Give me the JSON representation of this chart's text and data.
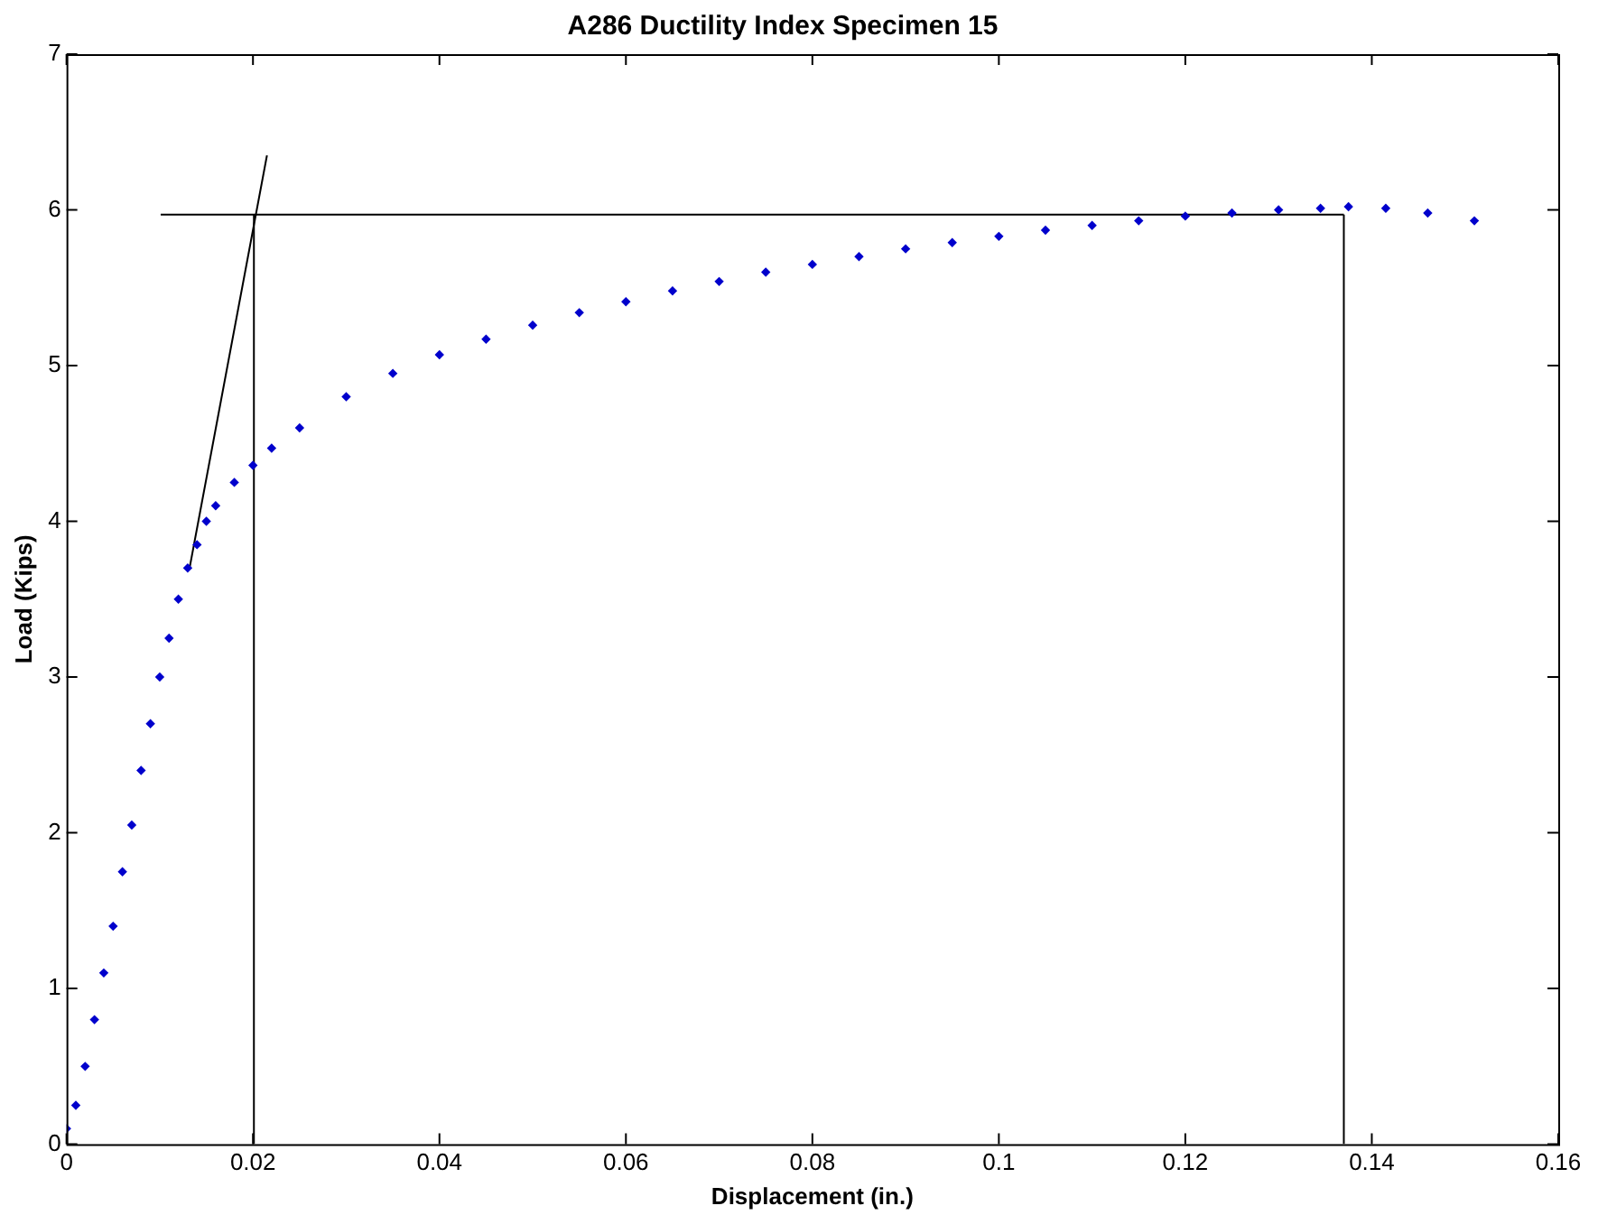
{
  "chart_data": {
    "type": "scatter",
    "title": "A286 Ductility Index Specimen 15",
    "xlabel": "Displacement (in.)",
    "ylabel": "Load (Kips)",
    "xlim": [
      0,
      0.16
    ],
    "xticks": [
      0,
      0.02,
      0.04,
      0.06,
      0.08,
      0.1,
      0.12,
      0.14,
      0.16
    ],
    "ylim": [
      0,
      7
    ],
    "yticks": [
      0,
      1,
      2,
      3,
      4,
      5,
      6,
      7
    ],
    "grid": false,
    "legend": false,
    "series": [
      {
        "marker": "diamond",
        "color": "#0000cc",
        "x": [
          0,
          0.001,
          0.002,
          0.003,
          0.004,
          0.005,
          0.006,
          0.007,
          0.008,
          0.009,
          0.01,
          0.011,
          0.012,
          0.013,
          0.014,
          0.015,
          0.016,
          0.018,
          0.02,
          0.022,
          0.025,
          0.03,
          0.035,
          0.04,
          0.045,
          0.05,
          0.055,
          0.06,
          0.065,
          0.07,
          0.075,
          0.08,
          0.085,
          0.09,
          0.095,
          0.1,
          0.105,
          0.11,
          0.115,
          0.12,
          0.125,
          0.13,
          0.1345,
          0.1375,
          0.1415,
          0.146,
          0.151
        ],
        "values": [
          0.1,
          0.25,
          0.5,
          0.8,
          1.1,
          1.4,
          1.75,
          2.05,
          2.4,
          2.7,
          3.0,
          3.25,
          3.5,
          3.7,
          3.85,
          4.0,
          4.1,
          4.25,
          4.36,
          4.47,
          4.6,
          4.8,
          4.95,
          5.07,
          5.17,
          5.26,
          5.34,
          5.41,
          5.48,
          5.54,
          5.6,
          5.65,
          5.7,
          5.75,
          5.79,
          5.83,
          5.87,
          5.9,
          5.93,
          5.96,
          5.98,
          6.0,
          6.01,
          6.02,
          6.01,
          5.98,
          5.93
        ]
      },
      {
        "type": "line",
        "marker": "none",
        "color": "#000000",
        "x": [
          0.0132,
          0.0215
        ],
        "values": [
          3.7,
          6.35
        ]
      },
      {
        "type": "line",
        "marker": "none",
        "color": "#000000",
        "x": [
          0.0101,
          0.137
        ],
        "values": [
          5.97,
          5.97
        ]
      },
      {
        "type": "line",
        "marker": "none",
        "color": "#000000",
        "x": [
          0.0201,
          0.0201
        ],
        "values": [
          0,
          5.97
        ]
      },
      {
        "type": "line",
        "marker": "none",
        "color": "#000000",
        "x": [
          0.137,
          0.137
        ],
        "values": [
          0,
          5.97
        ]
      }
    ]
  }
}
